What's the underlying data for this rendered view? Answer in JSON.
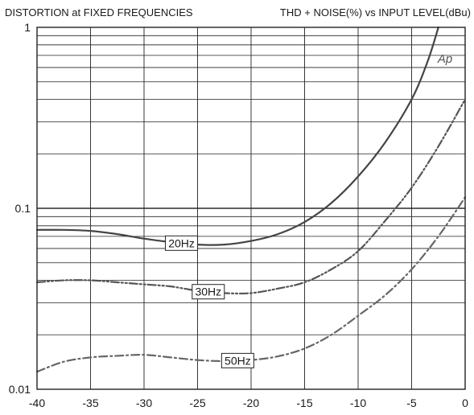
{
  "chart_data": {
    "type": "line",
    "title": "DISTORTION at FIXED FREQUENCIES",
    "subtitle": "THD + NOISE(%) vs INPUT LEVEL(dBu)",
    "logo": "Ap",
    "xlabel": "",
    "ylabel": "",
    "x_scale": "linear",
    "y_scale": "log",
    "xlim": [
      -40,
      0
    ],
    "ylim": [
      0.01,
      1
    ],
    "x_ticks": [
      "-40",
      "-35",
      "-30",
      "-25",
      "-20",
      "-15",
      "-10",
      "-5",
      "0"
    ],
    "y_ticks": [
      "1",
      "0.1",
      "0.01"
    ],
    "grid": true,
    "series": [
      {
        "name": "20Hz",
        "line_style": "solid",
        "color": "#444444",
        "points": [
          [
            -40,
            0.076
          ],
          [
            -37.5,
            0.076
          ],
          [
            -35,
            0.075
          ],
          [
            -32.5,
            0.072
          ],
          [
            -30,
            0.068
          ],
          [
            -27.5,
            0.065
          ],
          [
            -25,
            0.063
          ],
          [
            -22.5,
            0.063
          ],
          [
            -20,
            0.066
          ],
          [
            -17.5,
            0.072
          ],
          [
            -15,
            0.084
          ],
          [
            -12.5,
            0.107
          ],
          [
            -10,
            0.15
          ],
          [
            -7.5,
            0.23
          ],
          [
            -5,
            0.4
          ],
          [
            -3.5,
            0.65
          ],
          [
            -2.5,
            1.0
          ]
        ]
      },
      {
        "name": "30Hz",
        "line_style": "dash-dot-dot",
        "color": "#555555",
        "points": [
          [
            -40,
            0.039
          ],
          [
            -37.5,
            0.04
          ],
          [
            -35,
            0.04
          ],
          [
            -32.5,
            0.039
          ],
          [
            -30,
            0.038
          ],
          [
            -27.5,
            0.037
          ],
          [
            -25,
            0.035
          ],
          [
            -22.5,
            0.034
          ],
          [
            -20,
            0.034
          ],
          [
            -17.5,
            0.036
          ],
          [
            -15,
            0.039
          ],
          [
            -12.5,
            0.046
          ],
          [
            -10,
            0.058
          ],
          [
            -7.5,
            0.085
          ],
          [
            -5,
            0.13
          ],
          [
            -2.5,
            0.22
          ],
          [
            0,
            0.4
          ]
        ]
      },
      {
        "name": "50Hz",
        "line_style": "dash-dot",
        "color": "#666666",
        "points": [
          [
            -40,
            0.0125
          ],
          [
            -37.5,
            0.0142
          ],
          [
            -35,
            0.015
          ],
          [
            -32.5,
            0.0153
          ],
          [
            -30,
            0.0155
          ],
          [
            -27.5,
            0.015
          ],
          [
            -25,
            0.0145
          ],
          [
            -22.5,
            0.0143
          ],
          [
            -20,
            0.0145
          ],
          [
            -17.5,
            0.0152
          ],
          [
            -15,
            0.0168
          ],
          [
            -12.5,
            0.02
          ],
          [
            -10,
            0.0255
          ],
          [
            -7.5,
            0.033
          ],
          [
            -5,
            0.046
          ],
          [
            -2.5,
            0.07
          ],
          [
            0,
            0.115
          ]
        ]
      }
    ]
  }
}
